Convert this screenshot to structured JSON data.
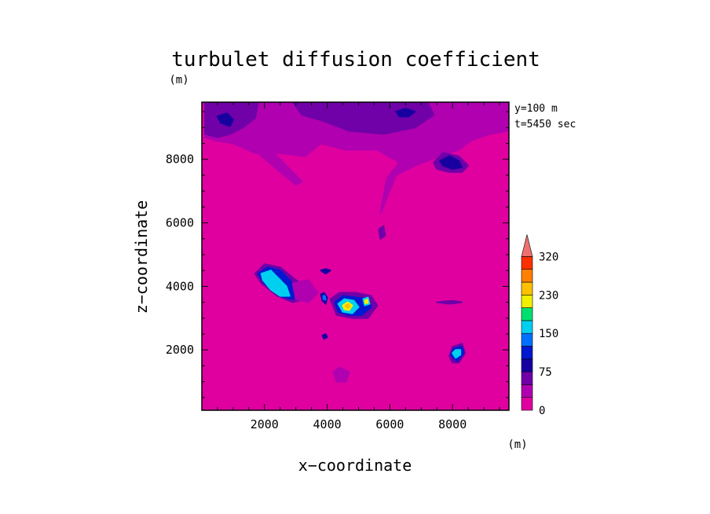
{
  "chart_data": {
    "type": "heatmap",
    "title": "turbulet diffusion coefficient",
    "xlabel": "x−coordinate",
    "ylabel": "z−coordinate",
    "x_unit": "(m)",
    "y_unit": "(m)",
    "xlim": [
      0,
      9800
    ],
    "ylim": [
      100,
      9800
    ],
    "x_ticks": [
      2000,
      4000,
      6000,
      8000
    ],
    "y_ticks": [
      2000,
      4000,
      6000,
      8000
    ],
    "annotations": [
      "y=100  m",
      "t=5450  sec"
    ],
    "background_value": 0,
    "colorbar": {
      "levels": [
        0,
        25,
        50,
        75,
        100,
        125,
        150,
        175,
        200,
        230,
        260,
        290,
        320
      ],
      "tick_values": [
        0,
        75,
        150,
        230,
        320
      ],
      "colors": [
        "#e000a0",
        "#b000b0",
        "#7000a8",
        "#1800a0",
        "#0018d0",
        "#0070ff",
        "#00d0f0",
        "#00e070",
        "#f0f000",
        "#ffc000",
        "#ff8000",
        "#ff3000",
        "#f07070"
      ],
      "extend": "max"
    },
    "regions": [
      {
        "name": "upper-band",
        "value": 30,
        "points": [
          [
            100,
            9800
          ],
          [
            9800,
            9800
          ],
          [
            9800,
            8900
          ],
          [
            9200,
            8800
          ],
          [
            8600,
            8600
          ],
          [
            8200,
            8300
          ],
          [
            7600,
            8100
          ],
          [
            6800,
            7800
          ],
          [
            6200,
            7500
          ],
          [
            5700,
            6300
          ],
          [
            5900,
            7400
          ],
          [
            6300,
            7900
          ],
          [
            5600,
            8300
          ],
          [
            4600,
            8300
          ],
          [
            3800,
            8500
          ],
          [
            3300,
            8100
          ],
          [
            2500,
            8200
          ],
          [
            1700,
            8200
          ],
          [
            1000,
            8500
          ],
          [
            400,
            8600
          ],
          [
            100,
            8700
          ]
        ]
      },
      {
        "name": "upper-mid",
        "value": 55,
        "points": [
          [
            2900,
            9800
          ],
          [
            7200,
            9800
          ],
          [
            7400,
            9400
          ],
          [
            6800,
            9000
          ],
          [
            5800,
            8800
          ],
          [
            4700,
            8900
          ],
          [
            3900,
            9200
          ],
          [
            3200,
            9400
          ]
        ]
      },
      {
        "name": "upper-left-fold",
        "value": 55,
        "points": [
          [
            100,
            9800
          ],
          [
            1800,
            9800
          ],
          [
            1700,
            9300
          ],
          [
            1300,
            9000
          ],
          [
            900,
            8800
          ],
          [
            500,
            8700
          ],
          [
            100,
            8800
          ]
        ]
      },
      {
        "name": "left-streak",
        "value": 30,
        "points": [
          [
            1800,
            8600
          ],
          [
            2400,
            8100
          ],
          [
            2900,
            7600
          ],
          [
            3200,
            7300
          ],
          [
            3000,
            7200
          ],
          [
            2500,
            7600
          ],
          [
            1900,
            8100
          ],
          [
            1500,
            8500
          ]
        ]
      },
      {
        "name": "blob-topleft",
        "value": 80,
        "points": [
          [
            500,
            9350
          ],
          [
            800,
            9450
          ],
          [
            1000,
            9250
          ],
          [
            900,
            9050
          ],
          [
            600,
            9150
          ]
        ]
      },
      {
        "name": "blob-topcenter",
        "value": 80,
        "points": [
          [
            6200,
            9500
          ],
          [
            6500,
            9600
          ],
          [
            6800,
            9500
          ],
          [
            6600,
            9350
          ],
          [
            6300,
            9350
          ]
        ]
      },
      {
        "name": "ring-topright",
        "value": 55,
        "points": [
          [
            7400,
            7900
          ],
          [
            7700,
            8200
          ],
          [
            8200,
            8100
          ],
          [
            8500,
            7800
          ],
          [
            8300,
            7600
          ],
          [
            7900,
            7600
          ],
          [
            7500,
            7700
          ]
        ]
      },
      {
        "name": "blob-topright",
        "value": 80,
        "points": [
          [
            7600,
            7950
          ],
          [
            7900,
            8100
          ],
          [
            8200,
            7950
          ],
          [
            8300,
            7750
          ],
          [
            8000,
            7700
          ],
          [
            7700,
            7800
          ]
        ]
      },
      {
        "name": "cluster-left-outer",
        "value": 55,
        "points": [
          [
            1700,
            4400
          ],
          [
            2000,
            4700
          ],
          [
            2500,
            4600
          ],
          [
            3000,
            4200
          ],
          [
            3500,
            3900
          ],
          [
            3300,
            3600
          ],
          [
            2900,
            3500
          ],
          [
            2400,
            3700
          ],
          [
            1900,
            4100
          ]
        ]
      },
      {
        "name": "cluster-left-blue",
        "value": 110,
        "points": [
          [
            1800,
            4400
          ],
          [
            2100,
            4600
          ],
          [
            2500,
            4500
          ],
          [
            2900,
            4100
          ],
          [
            3200,
            3800
          ],
          [
            2900,
            3600
          ],
          [
            2500,
            3700
          ],
          [
            2000,
            4100
          ]
        ]
      },
      {
        "name": "cluster-left-cyan",
        "value": 150,
        "points": [
          [
            1900,
            4400
          ],
          [
            2200,
            4500
          ],
          [
            2400,
            4300
          ],
          [
            2700,
            4000
          ],
          [
            2800,
            3700
          ],
          [
            2500,
            3700
          ],
          [
            2200,
            3900
          ],
          [
            1950,
            4200
          ]
        ]
      },
      {
        "name": "cluster-left-light",
        "value": 170,
        "points": [
          [
            2000,
            4350
          ],
          [
            2200,
            4400
          ],
          [
            2300,
            4250
          ],
          [
            2100,
            4150
          ]
        ]
      },
      {
        "name": "cluster-left-low",
        "value": 30,
        "points": [
          [
            2900,
            4100
          ],
          [
            3400,
            4200
          ],
          [
            3700,
            3800
          ],
          [
            3400,
            3500
          ],
          [
            3000,
            3600
          ]
        ]
      },
      {
        "name": "cluster-mid-outer",
        "value": 55,
        "points": [
          [
            4100,
            3600
          ],
          [
            4400,
            3800
          ],
          [
            4900,
            3800
          ],
          [
            5400,
            3700
          ],
          [
            5600,
            3400
          ],
          [
            5300,
            3000
          ],
          [
            4800,
            3000
          ],
          [
            4300,
            3100
          ]
        ]
      },
      {
        "name": "cluster-mid-blue",
        "value": 110,
        "points": [
          [
            4250,
            3500
          ],
          [
            4500,
            3700
          ],
          [
            4900,
            3650
          ],
          [
            5300,
            3600
          ],
          [
            5400,
            3350
          ],
          [
            5100,
            3100
          ],
          [
            4700,
            3100
          ],
          [
            4350,
            3200
          ]
        ]
      },
      {
        "name": "cluster-mid-cyan",
        "value": 150,
        "points": [
          [
            4350,
            3450
          ],
          [
            4550,
            3600
          ],
          [
            4850,
            3550
          ],
          [
            5000,
            3350
          ],
          [
            4800,
            3150
          ],
          [
            4500,
            3200
          ]
        ]
      },
      {
        "name": "cluster-mid-yellow",
        "value": 200,
        "points": [
          [
            4500,
            3400
          ],
          [
            4650,
            3500
          ],
          [
            4800,
            3400
          ],
          [
            4700,
            3250
          ],
          [
            4550,
            3280
          ]
        ]
      },
      {
        "name": "cluster-mid-orange",
        "value": 230,
        "points": [
          [
            4580,
            3390
          ],
          [
            4660,
            3440
          ],
          [
            4730,
            3380
          ],
          [
            4660,
            3320
          ]
        ]
      },
      {
        "name": "cluster-mid-east",
        "value": 150,
        "points": [
          [
            5150,
            3600
          ],
          [
            5300,
            3650
          ],
          [
            5350,
            3450
          ],
          [
            5200,
            3400
          ]
        ]
      },
      {
        "name": "cluster-mid-east-yellow",
        "value": 200,
        "points": [
          [
            5200,
            3550
          ],
          [
            5280,
            3590
          ],
          [
            5300,
            3480
          ],
          [
            5220,
            3460
          ]
        ]
      },
      {
        "name": "blob-small-4000",
        "value": 80,
        "points": [
          [
            3800,
            3750
          ],
          [
            3900,
            3800
          ],
          [
            4000,
            3650
          ],
          [
            3950,
            3450
          ],
          [
            3850,
            3550
          ]
        ]
      },
      {
        "name": "blob-small-4000-cyan",
        "value": 130,
        "points": [
          [
            3870,
            3700
          ],
          [
            3930,
            3700
          ],
          [
            3950,
            3580
          ],
          [
            3880,
            3600
          ]
        ]
      },
      {
        "name": "blob-small-top4000",
        "value": 80,
        "points": [
          [
            3800,
            4500
          ],
          [
            3950,
            4550
          ],
          [
            4100,
            4500
          ],
          [
            3950,
            4400
          ]
        ]
      },
      {
        "name": "blob-dot-2500",
        "value": 80,
        "points": [
          [
            3850,
            2450
          ],
          [
            3950,
            2500
          ],
          [
            4000,
            2400
          ],
          [
            3900,
            2350
          ]
        ]
      },
      {
        "name": "blob-lower-mid",
        "value": 30,
        "points": [
          [
            4200,
            1300
          ],
          [
            4400,
            1450
          ],
          [
            4700,
            1300
          ],
          [
            4600,
            1000
          ],
          [
            4300,
            1000
          ]
        ]
      },
      {
        "name": "blob-lower-right-outer",
        "value": 55,
        "points": [
          [
            7900,
            1800
          ],
          [
            8000,
            2100
          ],
          [
            8300,
            2200
          ],
          [
            8400,
            1900
          ],
          [
            8200,
            1600
          ],
          [
            8000,
            1600
          ]
        ]
      },
      {
        "name": "blob-lower-right-blue",
        "value": 110,
        "points": [
          [
            7950,
            1850
          ],
          [
            8050,
            2050
          ],
          [
            8300,
            2100
          ],
          [
            8350,
            1900
          ],
          [
            8150,
            1650
          ]
        ]
      },
      {
        "name": "blob-lower-right-cyan",
        "value": 150,
        "points": [
          [
            8000,
            1900
          ],
          [
            8100,
            2000
          ],
          [
            8250,
            2000
          ],
          [
            8250,
            1850
          ],
          [
            8100,
            1750
          ]
        ]
      },
      {
        "name": "blob-lower-right-green",
        "value": 170,
        "points": [
          [
            8050,
            1900
          ],
          [
            8150,
            1950
          ],
          [
            8200,
            1850
          ],
          [
            8100,
            1800
          ]
        ]
      },
      {
        "name": "streak-3500",
        "value": 55,
        "points": [
          [
            7500,
            3500
          ],
          [
            8000,
            3550
          ],
          [
            8300,
            3500
          ],
          [
            7900,
            3450
          ]
        ]
      },
      {
        "name": "streak-5600",
        "value": 55,
        "points": [
          [
            5650,
            5800
          ],
          [
            5800,
            5900
          ],
          [
            5850,
            5600
          ],
          [
            5700,
            5500
          ]
        ]
      }
    ]
  }
}
